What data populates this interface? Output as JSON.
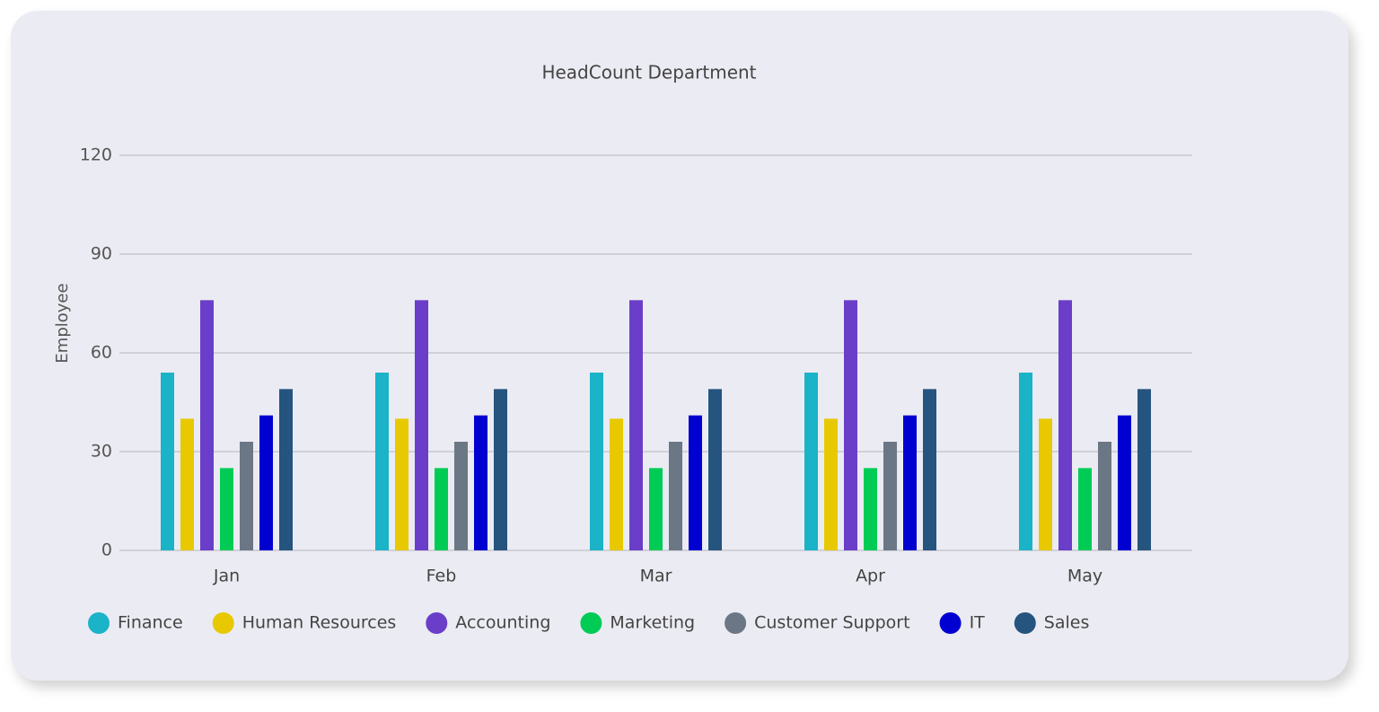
{
  "chart_data": {
    "type": "bar",
    "title": "HeadCount Department",
    "y_label": "Employee",
    "categories": [
      "Jan",
      "Feb",
      "Mar",
      "Apr",
      "May"
    ],
    "series": [
      {
        "name": "Finance",
        "color": "#1ab3c8",
        "values": [
          54,
          54,
          54,
          54,
          54
        ]
      },
      {
        "name": "Human Resources",
        "color": "#e8c800",
        "values": [
          40,
          40,
          40,
          40,
          40
        ]
      },
      {
        "name": "Accounting",
        "color": "#6a3ec8",
        "values": [
          76,
          76,
          76,
          76,
          76
        ]
      },
      {
        "name": "Marketing",
        "color": "#00cc55",
        "values": [
          25,
          25,
          25,
          25,
          25
        ]
      },
      {
        "name": "Customer Support",
        "color": "#6b7785",
        "values": [
          33,
          33,
          33,
          33,
          33
        ]
      },
      {
        "name": "IT",
        "color": "#0000d0",
        "values": [
          41,
          41,
          41,
          41,
          41
        ]
      },
      {
        "name": "Sales",
        "color": "#25547f",
        "values": [
          49,
          49,
          49,
          49,
          49
        ]
      }
    ],
    "ylim": [
      0,
      120
    ],
    "yticks": [
      0,
      30,
      60,
      90,
      120
    ],
    "grid": true,
    "legend": "bottom"
  }
}
